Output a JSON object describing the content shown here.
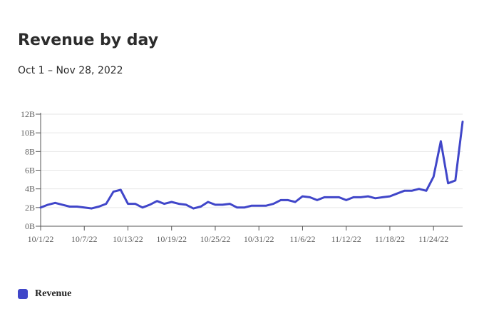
{
  "chart_data": {
    "type": "line",
    "title": "Revenue by day",
    "subtitle": "Oct 1 – Nov 28, 2022",
    "xlabel": "",
    "ylabel": "",
    "ylim": [
      0,
      12
    ],
    "y_unit_suffix": "B",
    "yticks": [
      0,
      2,
      4,
      6,
      8,
      10,
      12
    ],
    "ytick_labels": [
      "0B",
      "2B",
      "4B",
      "6B",
      "8B",
      "10B",
      "12B"
    ],
    "xtick_labels": [
      "10/1/22",
      "10/7/22",
      "10/13/22",
      "10/19/22",
      "10/25/22",
      "10/31/22",
      "11/6/22",
      "11/12/22",
      "11/18/22",
      "11/24/22"
    ],
    "xticks": [
      "2022-10-01",
      "2022-10-07",
      "2022-10-13",
      "2022-10-19",
      "2022-10-25",
      "2022-10-31",
      "2022-11-06",
      "2022-11-12",
      "2022-11-18",
      "2022-11-24"
    ],
    "x_range": [
      "2022-10-01",
      "2022-11-28"
    ],
    "grid": true,
    "legend_position": "bottom-left",
    "series": [
      {
        "name": "Revenue",
        "color": "#4046c9",
        "x": [
          "2022-10-01",
          "2022-10-02",
          "2022-10-03",
          "2022-10-04",
          "2022-10-05",
          "2022-10-06",
          "2022-10-07",
          "2022-10-08",
          "2022-10-09",
          "2022-10-10",
          "2022-10-11",
          "2022-10-12",
          "2022-10-13",
          "2022-10-14",
          "2022-10-15",
          "2022-10-16",
          "2022-10-17",
          "2022-10-18",
          "2022-10-19",
          "2022-10-20",
          "2022-10-21",
          "2022-10-22",
          "2022-10-23",
          "2022-10-24",
          "2022-10-25",
          "2022-10-26",
          "2022-10-27",
          "2022-10-28",
          "2022-10-29",
          "2022-10-30",
          "2022-10-31",
          "2022-11-01",
          "2022-11-02",
          "2022-11-03",
          "2022-11-04",
          "2022-11-05",
          "2022-11-06",
          "2022-11-07",
          "2022-11-08",
          "2022-11-09",
          "2022-11-10",
          "2022-11-11",
          "2022-11-12",
          "2022-11-13",
          "2022-11-14",
          "2022-11-15",
          "2022-11-16",
          "2022-11-17",
          "2022-11-18",
          "2022-11-19",
          "2022-11-20",
          "2022-11-21",
          "2022-11-22",
          "2022-11-23",
          "2022-11-24",
          "2022-11-25",
          "2022-11-26",
          "2022-11-27",
          "2022-11-28"
        ],
        "values": [
          2.0,
          2.3,
          2.5,
          2.3,
          2.1,
          2.1,
          2.0,
          1.9,
          2.1,
          2.4,
          3.7,
          3.9,
          2.4,
          2.4,
          2.0,
          2.3,
          2.7,
          2.4,
          2.6,
          2.4,
          2.3,
          1.9,
          2.1,
          2.6,
          2.3,
          2.3,
          2.4,
          2.0,
          2.0,
          2.2,
          2.2,
          2.2,
          2.4,
          2.8,
          2.8,
          2.6,
          3.2,
          3.1,
          2.8,
          3.1,
          3.1,
          3.1,
          2.8,
          3.1,
          3.1,
          3.2,
          3.0,
          3.1,
          3.2,
          3.5,
          3.8,
          3.8,
          4.0,
          3.8,
          5.3,
          9.1,
          4.6,
          4.9,
          11.2
        ]
      }
    ]
  }
}
